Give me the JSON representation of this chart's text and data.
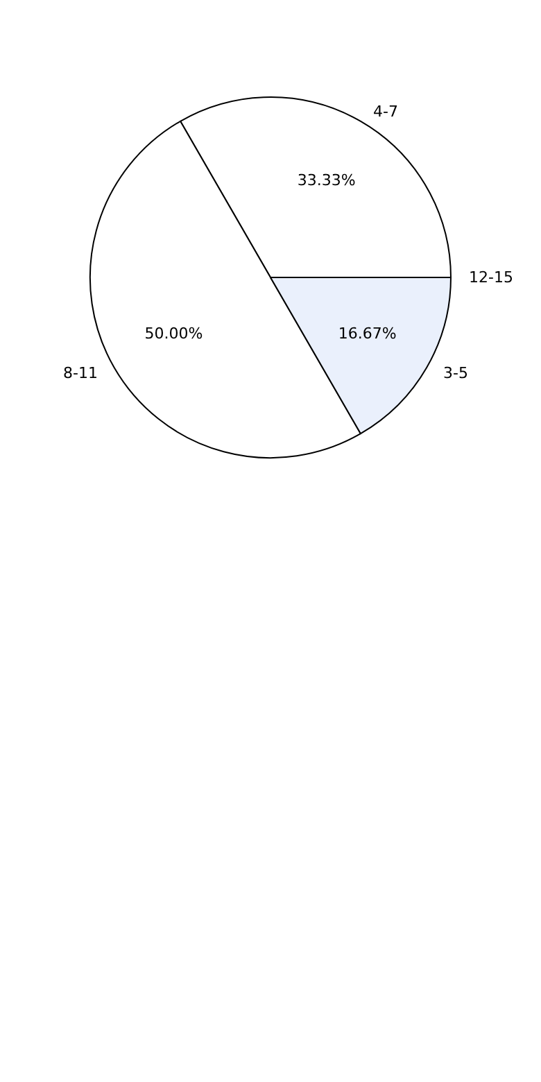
{
  "chart_data": {
    "type": "pie",
    "categories": [
      "4-7",
      "8-11",
      "3-5",
      "12-15"
    ],
    "values": [
      33.33,
      50.0,
      16.67,
      0
    ],
    "colors": [
      "#ffffff",
      "#ffffff",
      "#eaf0fc",
      "#ffffff"
    ],
    "value_labels": [
      "33.33%",
      "50.00%",
      "16.67%",
      null
    ],
    "legend": false
  }
}
